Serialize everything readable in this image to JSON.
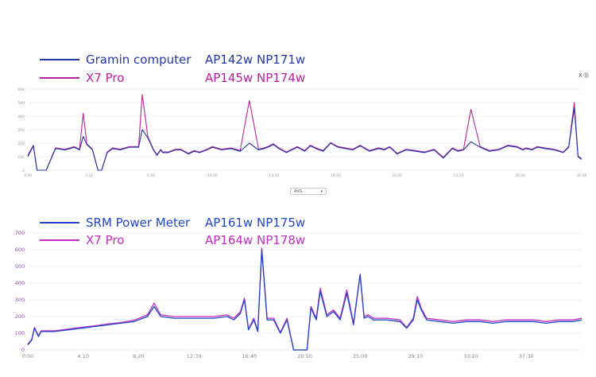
{
  "charts": [
    {
      "legend": [
        {
          "series": "Gramin computer",
          "stats": "AP142w  NP171w",
          "color": "#2336a8"
        },
        {
          "series": "X7 Pro",
          "stats": "AP145w  NP174w",
          "color": "#b8239c"
        }
      ]
    },
    {
      "legend": [
        {
          "series": "SRM Power Meter",
          "stats": "AP161w  NP175w",
          "color": "#2347c8"
        },
        {
          "series": "X7 Pro",
          "stats": "AP164w  NP178w",
          "color": "#c02fbf"
        }
      ]
    }
  ],
  "dropdown": {
    "selected": "AVG"
  },
  "corner_label": "X Ⓓ",
  "chart_data": [
    {
      "type": "line",
      "ylim": [
        0,
        600
      ],
      "yticks": [
        0,
        100,
        200,
        300,
        400,
        500,
        600
      ],
      "xlim": [
        0,
        30
      ],
      "xticks": [
        "0:00",
        "3:20",
        "6:40",
        "10:00",
        "13:20",
        "16:40",
        "20:00",
        "23:20",
        "26:40",
        "30:00"
      ],
      "series": [
        {
          "name": "Gramin computer",
          "color": "#2336a8",
          "x": [
            0,
            0.3,
            0.5,
            0.8,
            1,
            1.5,
            2,
            2.3,
            2.5,
            2.8,
            3,
            3.2,
            3.5,
            3.8,
            4,
            4.3,
            4.6,
            5,
            5.5,
            6,
            6.2,
            6.5,
            6.8,
            7,
            7.2,
            7.3,
            7.6,
            8,
            8.3,
            8.7,
            9,
            9.3,
            9.7,
            10,
            10.5,
            11,
            11.5,
            12,
            12.5,
            12.8,
            13,
            13.3,
            13.6,
            14,
            14.3,
            14.6,
            15,
            15.3,
            15.6,
            16,
            16.4,
            16.8,
            17.2,
            17.6,
            18,
            18.5,
            19,
            19.3,
            19.6,
            20,
            20.5,
            21,
            21.5,
            22,
            22.5,
            23,
            23.3,
            23.6,
            24,
            24.5,
            25,
            25.5,
            26,
            26.5,
            26.8,
            27,
            27.3,
            27.6,
            28,
            28.5,
            29,
            29.3,
            29.6,
            29.8,
            30
          ],
          "y": [
            100,
            180,
            0,
            0,
            0,
            160,
            150,
            160,
            170,
            150,
            250,
            190,
            150,
            0,
            0,
            130,
            160,
            150,
            170,
            170,
            300,
            240,
            150,
            110,
            150,
            130,
            130,
            150,
            150,
            120,
            140,
            130,
            150,
            170,
            150,
            160,
            140,
            200,
            150,
            160,
            170,
            190,
            160,
            130,
            150,
            170,
            140,
            180,
            160,
            140,
            200,
            170,
            160,
            150,
            180,
            140,
            160,
            150,
            170,
            120,
            150,
            140,
            130,
            150,
            90,
            160,
            140,
            150,
            210,
            170,
            140,
            150,
            180,
            170,
            150,
            160,
            150,
            170,
            160,
            150,
            130,
            170,
            460,
            100,
            80
          ]
        },
        {
          "name": "X7 Pro",
          "color": "#b8239c",
          "x": [
            0,
            0.3,
            0.5,
            0.8,
            1,
            1.5,
            2,
            2.3,
            2.5,
            2.8,
            3,
            3.2,
            3.5,
            3.8,
            4,
            4.3,
            4.6,
            5,
            5.5,
            6,
            6.2,
            6.5,
            6.8,
            7,
            7.2,
            7.3,
            7.6,
            8,
            8.3,
            8.7,
            9,
            9.3,
            9.7,
            10,
            10.5,
            11,
            11.5,
            12,
            12.5,
            12.8,
            13,
            13.3,
            13.6,
            14,
            14.3,
            14.6,
            15,
            15.3,
            15.6,
            16,
            16.4,
            16.8,
            17.2,
            17.6,
            18,
            18.5,
            19,
            19.3,
            19.6,
            20,
            20.5,
            21,
            21.5,
            22,
            22.5,
            23,
            23.3,
            23.6,
            24,
            24.5,
            25,
            25.5,
            26,
            26.5,
            26.8,
            27,
            27.3,
            27.6,
            28,
            28.5,
            29,
            29.3,
            29.6,
            29.8,
            30
          ],
          "y": [
            110,
            185,
            0,
            0,
            0,
            165,
            155,
            165,
            175,
            155,
            420,
            195,
            155,
            0,
            0,
            135,
            165,
            155,
            175,
            175,
            560,
            250,
            155,
            115,
            155,
            135,
            135,
            155,
            155,
            125,
            145,
            135,
            155,
            175,
            155,
            165,
            145,
            515,
            155,
            165,
            175,
            195,
            165,
            135,
            155,
            175,
            145,
            185,
            165,
            145,
            205,
            175,
            165,
            155,
            185,
            145,
            165,
            155,
            175,
            125,
            155,
            145,
            135,
            155,
            95,
            165,
            145,
            155,
            450,
            175,
            145,
            155,
            185,
            175,
            155,
            165,
            155,
            175,
            165,
            155,
            135,
            175,
            500,
            105,
            85
          ]
        }
      ]
    },
    {
      "type": "line",
      "ylim": [
        0,
        700
      ],
      "yticks": [
        0,
        100,
        200,
        300,
        400,
        500,
        600,
        700
      ],
      "xlim": [
        0,
        41.67
      ],
      "xticks": [
        "0:00",
        "4:10",
        "8:20",
        "12:30",
        "16:40",
        "20:50",
        "25:00",
        "29:10",
        "33:20",
        "37:30"
      ],
      "series": [
        {
          "name": "SRM Power Meter",
          "color": "#2347c8",
          "x": [
            0,
            0.3,
            0.5,
            0.8,
            1,
            2,
            3,
            4,
            5,
            6,
            7,
            8,
            9,
            9.5,
            10,
            11,
            12,
            13,
            14,
            15,
            15.5,
            16,
            16.3,
            16.6,
            17,
            17.3,
            17.6,
            18,
            18.5,
            19,
            19.5,
            20,
            20.5,
            21,
            21.3,
            21.7,
            22,
            22.5,
            23,
            23.5,
            24,
            24.5,
            25,
            25.3,
            25.6,
            26,
            26.5,
            27,
            28,
            28.5,
            29,
            29.3,
            29.6,
            30,
            31,
            32,
            33,
            34,
            35,
            36,
            37,
            38,
            39,
            40,
            41,
            41.67
          ],
          "y": [
            30,
            60,
            130,
            80,
            110,
            110,
            120,
            130,
            140,
            150,
            160,
            170,
            200,
            260,
            200,
            190,
            190,
            190,
            190,
            200,
            180,
            220,
            300,
            120,
            180,
            110,
            600,
            180,
            180,
            100,
            180,
            0,
            0,
            0,
            250,
            180,
            350,
            200,
            230,
            180,
            340,
            150,
            450,
            190,
            200,
            180,
            180,
            180,
            170,
            130,
            180,
            300,
            240,
            180,
            170,
            160,
            170,
            170,
            160,
            170,
            170,
            170,
            160,
            170,
            170,
            180
          ]
        },
        {
          "name": "X7 Pro",
          "color": "#c02fbf",
          "x": [
            0,
            0.3,
            0.5,
            0.8,
            1,
            2,
            3,
            4,
            5,
            6,
            7,
            8,
            9,
            9.5,
            10,
            11,
            12,
            13,
            14,
            15,
            15.5,
            16,
            16.3,
            16.6,
            17,
            17.3,
            17.6,
            18,
            18.5,
            19,
            19.5,
            20,
            20.5,
            21,
            21.3,
            21.7,
            22,
            22.5,
            23,
            23.5,
            24,
            24.5,
            25,
            25.3,
            25.6,
            26,
            26.5,
            27,
            28,
            28.5,
            29,
            29.3,
            29.6,
            30,
            31,
            32,
            33,
            34,
            35,
            36,
            37,
            38,
            39,
            40,
            41,
            41.67
          ],
          "y": [
            35,
            65,
            135,
            85,
            115,
            115,
            125,
            135,
            145,
            155,
            165,
            178,
            210,
            280,
            210,
            200,
            200,
            200,
            200,
            210,
            190,
            230,
            310,
            125,
            190,
            115,
            610,
            190,
            190,
            105,
            190,
            0,
            0,
            0,
            260,
            190,
            370,
            210,
            240,
            190,
            360,
            160,
            455,
            200,
            210,
            190,
            190,
            190,
            180,
            135,
            190,
            320,
            250,
            190,
            180,
            170,
            180,
            180,
            170,
            180,
            180,
            180,
            170,
            180,
            180,
            190
          ]
        }
      ]
    }
  ]
}
